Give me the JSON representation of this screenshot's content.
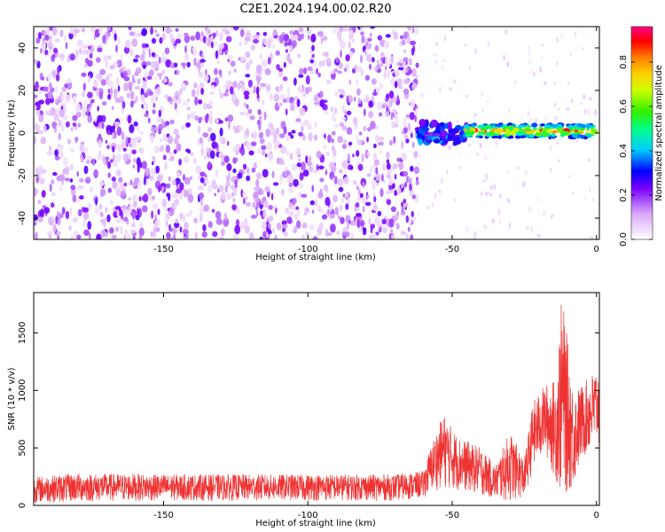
{
  "title": "C2E1.2024.194.00.02.R20",
  "chart_data": [
    {
      "type": "heatmap",
      "xlabel": "Height of straight line (km)",
      "ylabel": "Frequency (Hz)",
      "xlim": [
        -195,
        1
      ],
      "ylim": [
        -50,
        50
      ],
      "xticks": [
        -150,
        -100,
        -50,
        0
      ],
      "yticks": [
        -40,
        -20,
        0,
        20,
        40
      ],
      "colorbar": {
        "label": "Normalized spectral amplitude",
        "range": [
          0,
          0.96
        ],
        "ticks": [
          0.0,
          0.2,
          0.4,
          0.6,
          0.8
        ],
        "colormap": "white-purple-blue-cyan-green-yellow-orange-red-magenta"
      },
      "regions": [
        {
          "x_range": [
            -195,
            -62
          ],
          "freq_range": [
            -50,
            50
          ],
          "amplitude": "low (0.05-0.2), broadband noise"
        },
        {
          "x_range": [
            -62,
            -45
          ],
          "freq_range": [
            -5,
            5
          ],
          "amplitude": "0.2-0.4"
        },
        {
          "x_range": [
            -45,
            0
          ],
          "freq_range": [
            -2,
            4
          ],
          "amplitude": "0.4-0.96",
          "peak_center_hz": 1
        }
      ]
    },
    {
      "type": "line",
      "xlabel": "Height of straight line (km)",
      "ylabel": "SNR (10 * v/v)",
      "xlim": [
        -195,
        1
      ],
      "ylim": [
        0,
        1850
      ],
      "xticks": [
        -150,
        -100,
        -50,
        0
      ],
      "yticks": [
        0,
        500,
        1000,
        1500
      ],
      "series": [
        {
          "color": "#ee3333",
          "envelope": [
            {
              "x": -195,
              "low": 20,
              "high": 250
            },
            {
              "x": -180,
              "low": 30,
              "high": 280
            },
            {
              "x": -150,
              "low": 40,
              "high": 270
            },
            {
              "x": -100,
              "low": 40,
              "high": 270
            },
            {
              "x": -70,
              "low": 40,
              "high": 270
            },
            {
              "x": -60,
              "low": 60,
              "high": 300
            },
            {
              "x": -57,
              "low": 120,
              "high": 550
            },
            {
              "x": -53,
              "low": 150,
              "high": 800
            },
            {
              "x": -48,
              "low": 130,
              "high": 600
            },
            {
              "x": -40,
              "low": 90,
              "high": 500
            },
            {
              "x": -35,
              "low": 50,
              "high": 350
            },
            {
              "x": -30,
              "low": 30,
              "high": 650
            },
            {
              "x": -25,
              "low": 70,
              "high": 400
            },
            {
              "x": -22,
              "low": 300,
              "high": 900
            },
            {
              "x": -18,
              "low": 450,
              "high": 1050
            },
            {
              "x": -14,
              "low": 200,
              "high": 1100
            },
            {
              "x": -12,
              "low": 50,
              "high": 1850
            },
            {
              "x": -8,
              "low": 150,
              "high": 1000
            },
            {
              "x": -5,
              "low": 400,
              "high": 1050
            },
            {
              "x": 0,
              "low": 500,
              "high": 1200
            }
          ]
        }
      ]
    }
  ]
}
